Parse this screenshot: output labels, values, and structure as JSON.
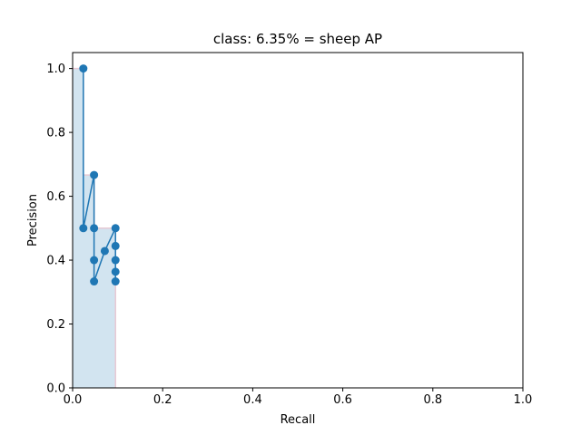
{
  "chart_data": {
    "type": "line",
    "title": "class: 6.35% = sheep AP",
    "xlabel": "Recall",
    "ylabel": "Precision",
    "xlim": [
      0.0,
      1.0
    ],
    "ylim": [
      0.0,
      1.05
    ],
    "x_ticks": [
      "0.0",
      "0.2",
      "0.4",
      "0.6",
      "0.8",
      "1.0"
    ],
    "y_ticks": [
      "0.0",
      "0.2",
      "0.4",
      "0.6",
      "0.8",
      "1.0"
    ],
    "grid": false,
    "series": [
      {
        "name": "",
        "color": "#1f77b4",
        "x": [
          0.0238,
          0.0238,
          0.0476,
          0.0476,
          0.0476,
          0.0476,
          0.0714,
          0.0952,
          0.0952,
          0.0952,
          0.0952,
          0.0952
        ],
        "y": [
          1.0,
          0.5,
          0.6667,
          0.5,
          0.4,
          0.3333,
          0.4286,
          0.5,
          0.4444,
          0.4,
          0.3636,
          0.3333
        ]
      }
    ],
    "area": {
      "name": "",
      "fill_color": "#1f77b4",
      "edge_color": "#e7c9d3",
      "x": [
        0.0,
        0.0238,
        0.0238,
        0.0476,
        0.0476,
        0.0952,
        0.0952
      ],
      "y": [
        1.0,
        1.0,
        0.6667,
        0.6667,
        0.5,
        0.5,
        0.0
      ]
    }
  }
}
